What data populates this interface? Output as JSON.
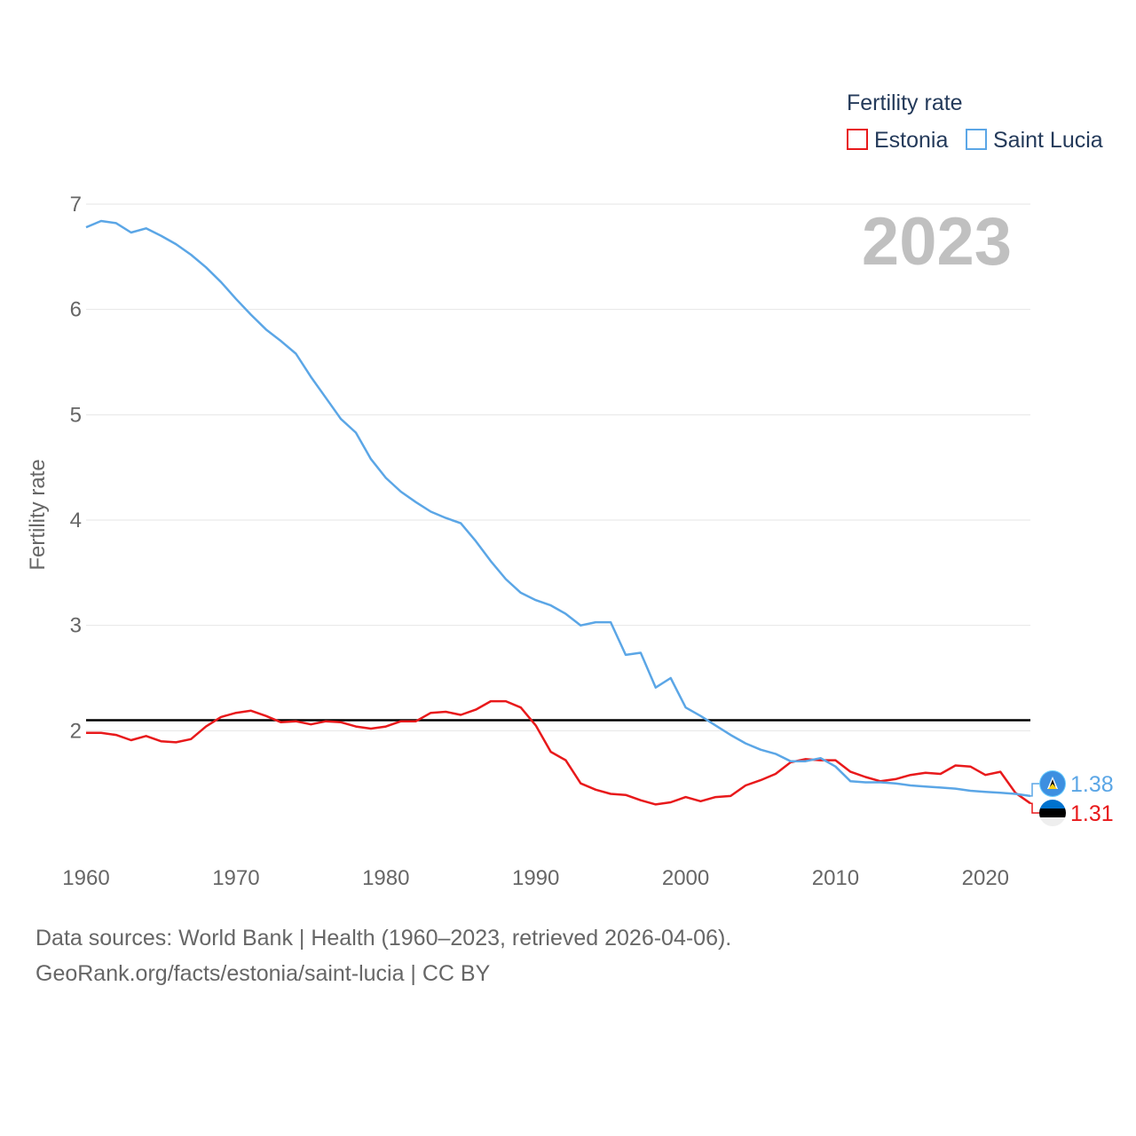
{
  "chart_data": {
    "type": "line",
    "title": "Fertility rate",
    "current_year": "2023",
    "xlabel": "",
    "ylabel": "Fertility rate",
    "xlim": [
      1960,
      2023
    ],
    "ylim": [
      1,
      7
    ],
    "x_ticks": [
      1960,
      1970,
      1980,
      1990,
      2000,
      2010,
      2020
    ],
    "y_ticks": [
      2,
      3,
      4,
      5,
      6,
      7
    ],
    "reference_line": 2.1,
    "legend_title": "Fertility rate",
    "legend_position": "top-right",
    "x": [
      1960,
      1961,
      1962,
      1963,
      1964,
      1965,
      1966,
      1967,
      1968,
      1969,
      1970,
      1971,
      1972,
      1973,
      1974,
      1975,
      1976,
      1977,
      1978,
      1979,
      1980,
      1981,
      1982,
      1983,
      1984,
      1985,
      1986,
      1987,
      1988,
      1989,
      1990,
      1991,
      1992,
      1993,
      1994,
      1995,
      1996,
      1997,
      1998,
      1999,
      2000,
      2001,
      2002,
      2003,
      2004,
      2005,
      2006,
      2007,
      2008,
      2009,
      2010,
      2011,
      2012,
      2013,
      2014,
      2015,
      2016,
      2017,
      2018,
      2019,
      2020,
      2021,
      2022,
      2023
    ],
    "series": [
      {
        "name": "Estonia",
        "color": "#e8191b",
        "end_label": "1.31",
        "values": [
          1.98,
          1.98,
          1.96,
          1.91,
          1.95,
          1.9,
          1.89,
          1.92,
          2.04,
          2.13,
          2.17,
          2.19,
          2.14,
          2.08,
          2.09,
          2.06,
          2.09,
          2.08,
          2.04,
          2.02,
          2.04,
          2.09,
          2.09,
          2.17,
          2.18,
          2.15,
          2.2,
          2.28,
          2.28,
          2.22,
          2.05,
          1.8,
          1.72,
          1.5,
          1.44,
          1.4,
          1.39,
          1.34,
          1.3,
          1.32,
          1.37,
          1.33,
          1.37,
          1.38,
          1.48,
          1.53,
          1.59,
          1.7,
          1.73,
          1.72,
          1.72,
          1.61,
          1.56,
          1.52,
          1.54,
          1.58,
          1.6,
          1.59,
          1.67,
          1.66,
          1.58,
          1.61,
          1.41,
          1.31
        ]
      },
      {
        "name": "Saint Lucia",
        "color": "#5ba6e6",
        "end_label": "1.38",
        "values": [
          6.78,
          6.84,
          6.82,
          6.73,
          6.77,
          6.7,
          6.62,
          6.52,
          6.4,
          6.26,
          6.1,
          5.95,
          5.81,
          5.7,
          5.58,
          5.36,
          5.16,
          4.96,
          4.83,
          4.58,
          4.4,
          4.27,
          4.17,
          4.08,
          4.02,
          3.97,
          3.8,
          3.61,
          3.44,
          3.31,
          3.24,
          3.19,
          3.11,
          3.0,
          3.03,
          3.03,
          2.72,
          2.74,
          2.41,
          2.5,
          2.22,
          2.14,
          2.05,
          1.96,
          1.88,
          1.82,
          1.78,
          1.71,
          1.71,
          1.74,
          1.66,
          1.52,
          1.51,
          1.51,
          1.5,
          1.48,
          1.47,
          1.46,
          1.45,
          1.43,
          1.42,
          1.41,
          1.4,
          1.38
        ]
      }
    ]
  },
  "footer": {
    "line1": "Data sources: World Bank | Health (1960–2023, retrieved 2026-04-06).",
    "line2": "GeoRank.org/facts/estonia/saint-lucia | CC BY"
  }
}
